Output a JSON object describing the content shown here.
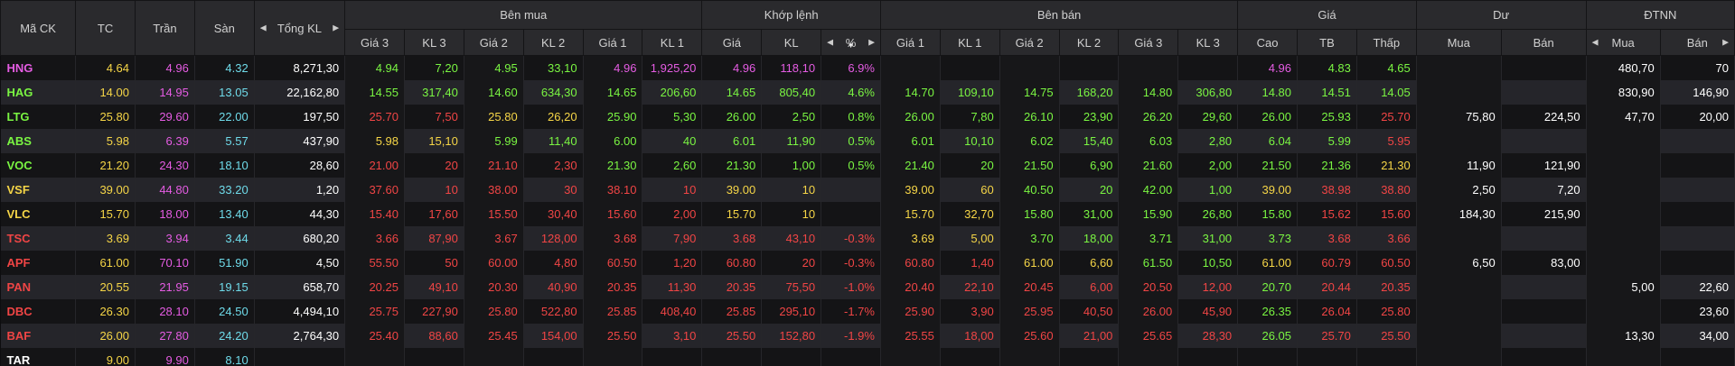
{
  "headers": {
    "symbol": "Mã CK",
    "ref": "TC",
    "ceiling": "Trần",
    "floor": "Sàn",
    "total_vol": "Tổng KL",
    "buy_group": "Bên mua",
    "match_group": "Khớp lệnh",
    "sell_group": "Bên bán",
    "price_group": "Giá",
    "remain_group": "Dư",
    "foreign_group": "ĐTNN",
    "buy_cols": [
      "Giá 3",
      "KL 3",
      "Giá 2",
      "KL 2",
      "Giá 1",
      "KL 1"
    ],
    "match_cols": [
      "Giá",
      "KL",
      "%"
    ],
    "sell_cols": [
      "Giá 1",
      "KL 1",
      "Giá 2",
      "KL 2",
      "Giá 3",
      "KL 3"
    ],
    "price_cols": [
      "Cao",
      "TB",
      "Thấp"
    ],
    "remain_cols": [
      "Mua",
      "Bán"
    ],
    "foreign_cols": [
      "Mua",
      "Bán"
    ]
  },
  "colors": {
    "ref": "#f5d547",
    "ceiling": "#e55ce3",
    "floor": "#6fdbea",
    "up": "#7af542",
    "down": "#f04545"
  },
  "rows": [
    [
      "HNG",
      "4.64",
      "4.96",
      "4.32",
      "8,271,30",
      "4.94",
      "7,20",
      "4.95",
      "33,10",
      "4.96",
      "1,925,20",
      "4.96",
      "118,10",
      "6.9%",
      "",
      "",
      "",
      "",
      "",
      "",
      "4.96",
      "4.83",
      "4.65",
      "",
      "",
      "480,70",
      "70"
    ],
    [
      "HAG",
      "14.00",
      "14.95",
      "13.05",
      "22,162,80",
      "14.55",
      "317,40",
      "14.60",
      "634,30",
      "14.65",
      "206,60",
      "14.65",
      "805,40",
      "4.6%",
      "14.70",
      "109,10",
      "14.75",
      "168,20",
      "14.80",
      "306,80",
      "14.80",
      "14.51",
      "14.05",
      "",
      "",
      "830,90",
      "146,90"
    ],
    [
      "LTG",
      "25.80",
      "29.60",
      "22.00",
      "197,50",
      "25.70",
      "7,50",
      "25.80",
      "26,20",
      "25.90",
      "5,30",
      "26.00",
      "2,50",
      "0.8%",
      "26.00",
      "7,80",
      "26.10",
      "23,90",
      "26.20",
      "29,60",
      "26.00",
      "25.93",
      "25.70",
      "75,80",
      "224,50",
      "47,70",
      "20,00"
    ],
    [
      "ABS",
      "5.98",
      "6.39",
      "5.57",
      "437,90",
      "5.98",
      "15,10",
      "5.99",
      "11,40",
      "6.00",
      "40",
      "6.01",
      "11,90",
      "0.5%",
      "6.01",
      "10,10",
      "6.02",
      "15,40",
      "6.03",
      "2,80",
      "6.04",
      "5.99",
      "5.95",
      "",
      "",
      "",
      ""
    ],
    [
      "VOC",
      "21.20",
      "24.30",
      "18.10",
      "28,60",
      "21.00",
      "20",
      "21.10",
      "2,30",
      "21.30",
      "2,60",
      "21.30",
      "1,00",
      "0.5%",
      "21.40",
      "20",
      "21.50",
      "6,90",
      "21.60",
      "2,00",
      "21.50",
      "21.36",
      "21.30",
      "11,90",
      "121,90",
      "",
      ""
    ],
    [
      "VSF",
      "39.00",
      "44.80",
      "33.20",
      "1,20",
      "37.60",
      "10",
      "38.00",
      "30",
      "38.10",
      "10",
      "39.00",
      "10",
      "",
      "39.00",
      "60",
      "40.50",
      "20",
      "42.00",
      "1,00",
      "39.00",
      "38.98",
      "38.80",
      "2,50",
      "7,20",
      "",
      ""
    ],
    [
      "VLC",
      "15.70",
      "18.00",
      "13.40",
      "44,30",
      "15.40",
      "17,60",
      "15.50",
      "30,40",
      "15.60",
      "2,00",
      "15.70",
      "10",
      "",
      "15.70",
      "32,70",
      "15.80",
      "31,00",
      "15.90",
      "26,80",
      "15.80",
      "15.62",
      "15.60",
      "184,30",
      "215,90",
      "",
      ""
    ],
    [
      "TSC",
      "3.69",
      "3.94",
      "3.44",
      "680,20",
      "3.66",
      "87,90",
      "3.67",
      "128,00",
      "3.68",
      "7,90",
      "3.68",
      "43,10",
      "-0.3%",
      "3.69",
      "5,00",
      "3.70",
      "18,00",
      "3.71",
      "31,00",
      "3.73",
      "3.68",
      "3.66",
      "",
      "",
      "",
      ""
    ],
    [
      "APF",
      "61.00",
      "70.10",
      "51.90",
      "4,50",
      "55.50",
      "50",
      "60.00",
      "4,80",
      "60.50",
      "1,20",
      "60.80",
      "20",
      "-0.3%",
      "60.80",
      "1,40",
      "61.00",
      "6,60",
      "61.50",
      "10,50",
      "61.00",
      "60.79",
      "60.50",
      "6,50",
      "83,00",
      "",
      ""
    ],
    [
      "PAN",
      "20.55",
      "21.95",
      "19.15",
      "658,70",
      "20.25",
      "49,10",
      "20.30",
      "40,90",
      "20.35",
      "11,30",
      "20.35",
      "75,50",
      "-1.0%",
      "20.40",
      "22,10",
      "20.45",
      "6,00",
      "20.50",
      "12,00",
      "20.70",
      "20.44",
      "20.35",
      "",
      "",
      "5,00",
      "22,60"
    ],
    [
      "DBC",
      "26.30",
      "28.10",
      "24.50",
      "4,494,10",
      "25.75",
      "227,90",
      "25.80",
      "522,80",
      "25.85",
      "408,40",
      "25.85",
      "295,10",
      "-1.7%",
      "25.90",
      "3,90",
      "25.95",
      "40,50",
      "26.00",
      "45,90",
      "26.35",
      "26.04",
      "25.80",
      "",
      "",
      "",
      "23,60"
    ],
    [
      "BAF",
      "26.00",
      "27.80",
      "24.20",
      "2,764,30",
      "25.40",
      "88,60",
      "25.45",
      "154,00",
      "25.50",
      "3,10",
      "25.50",
      "152,80",
      "-1.9%",
      "25.55",
      "18,00",
      "25.60",
      "21,00",
      "25.65",
      "28,30",
      "26.05",
      "25.70",
      "25.50",
      "",
      "",
      "13,30",
      "34,00"
    ],
    [
      "TAR",
      "9.00",
      "9.90",
      "8.10",
      "",
      "",
      "",
      "",
      "",
      "",
      "",
      "",
      "",
      "",
      "",
      "",
      "",
      "",
      "",
      "",
      "",
      "",
      "",
      "",
      "",
      "",
      ""
    ]
  ],
  "row_colors": [
    [
      "ce",
      "ref",
      "ce",
      "fl",
      "w",
      "up",
      "up",
      "up",
      "up",
      "ce",
      "ce",
      "ce",
      "ce",
      "ce",
      "",
      "",
      "",
      "",
      "",
      "",
      "ce",
      "up",
      "up",
      "",
      "",
      "w",
      "w"
    ],
    [
      "up",
      "ref",
      "ce",
      "fl",
      "w",
      "up",
      "up",
      "up",
      "up",
      "up",
      "up",
      "up",
      "up",
      "up",
      "up",
      "up",
      "up",
      "up",
      "up",
      "up",
      "up",
      "up",
      "up",
      "",
      "",
      "w",
      "w"
    ],
    [
      "up",
      "ref",
      "ce",
      "fl",
      "w",
      "down",
      "down",
      "ref",
      "ref",
      "up",
      "up",
      "up",
      "up",
      "up",
      "up",
      "up",
      "up",
      "up",
      "up",
      "up",
      "up",
      "up",
      "down",
      "w",
      "w",
      "w",
      "w"
    ],
    [
      "up",
      "ref",
      "ce",
      "fl",
      "w",
      "ref",
      "ref",
      "up",
      "up",
      "up",
      "up",
      "up",
      "up",
      "up",
      "up",
      "up",
      "up",
      "up",
      "up",
      "up",
      "up",
      "up",
      "down",
      "",
      "",
      "",
      ""
    ],
    [
      "up",
      "ref",
      "ce",
      "fl",
      "w",
      "down",
      "down",
      "down",
      "down",
      "up",
      "up",
      "up",
      "up",
      "up",
      "up",
      "up",
      "up",
      "up",
      "up",
      "up",
      "up",
      "up",
      "ref",
      "w",
      "w",
      "",
      ""
    ],
    [
      "ref",
      "ref",
      "ce",
      "fl",
      "w",
      "down",
      "down",
      "down",
      "down",
      "down",
      "down",
      "ref",
      "ref",
      "",
      "ref",
      "ref",
      "up",
      "up",
      "up",
      "up",
      "ref",
      "down",
      "down",
      "w",
      "w",
      "",
      ""
    ],
    [
      "ref",
      "ref",
      "ce",
      "fl",
      "w",
      "down",
      "down",
      "down",
      "down",
      "down",
      "down",
      "ref",
      "ref",
      "",
      "ref",
      "ref",
      "up",
      "up",
      "up",
      "up",
      "up",
      "down",
      "down",
      "w",
      "w",
      "",
      ""
    ],
    [
      "down",
      "ref",
      "ce",
      "fl",
      "w",
      "down",
      "down",
      "down",
      "down",
      "down",
      "down",
      "down",
      "down",
      "down",
      "ref",
      "ref",
      "up",
      "up",
      "up",
      "up",
      "up",
      "down",
      "down",
      "",
      "",
      "",
      ""
    ],
    [
      "down",
      "ref",
      "ce",
      "fl",
      "w",
      "down",
      "down",
      "down",
      "down",
      "down",
      "down",
      "down",
      "down",
      "down",
      "down",
      "down",
      "ref",
      "ref",
      "up",
      "up",
      "ref",
      "down",
      "down",
      "w",
      "w",
      "",
      ""
    ],
    [
      "down",
      "ref",
      "ce",
      "fl",
      "w",
      "down",
      "down",
      "down",
      "down",
      "down",
      "down",
      "down",
      "down",
      "down",
      "down",
      "down",
      "down",
      "down",
      "down",
      "down",
      "up",
      "down",
      "down",
      "",
      "",
      "w",
      "w"
    ],
    [
      "down",
      "ref",
      "ce",
      "fl",
      "w",
      "down",
      "down",
      "down",
      "down",
      "down",
      "down",
      "down",
      "down",
      "down",
      "down",
      "down",
      "down",
      "down",
      "down",
      "down",
      "up",
      "down",
      "down",
      "",
      "",
      "",
      "w"
    ],
    [
      "down",
      "ref",
      "ce",
      "fl",
      "w",
      "down",
      "down",
      "down",
      "down",
      "down",
      "down",
      "down",
      "down",
      "down",
      "down",
      "down",
      "down",
      "down",
      "down",
      "down",
      "up",
      "down",
      "down",
      "",
      "",
      "w",
      "w"
    ],
    [
      "w",
      "ref",
      "ce",
      "fl",
      "",
      "",
      "",
      "",
      "",
      "",
      "",
      "",
      "",
      "",
      "",
      "",
      "",
      "",
      "",
      "",
      "",
      "",
      "",
      "",
      "",
      "",
      ""
    ]
  ]
}
